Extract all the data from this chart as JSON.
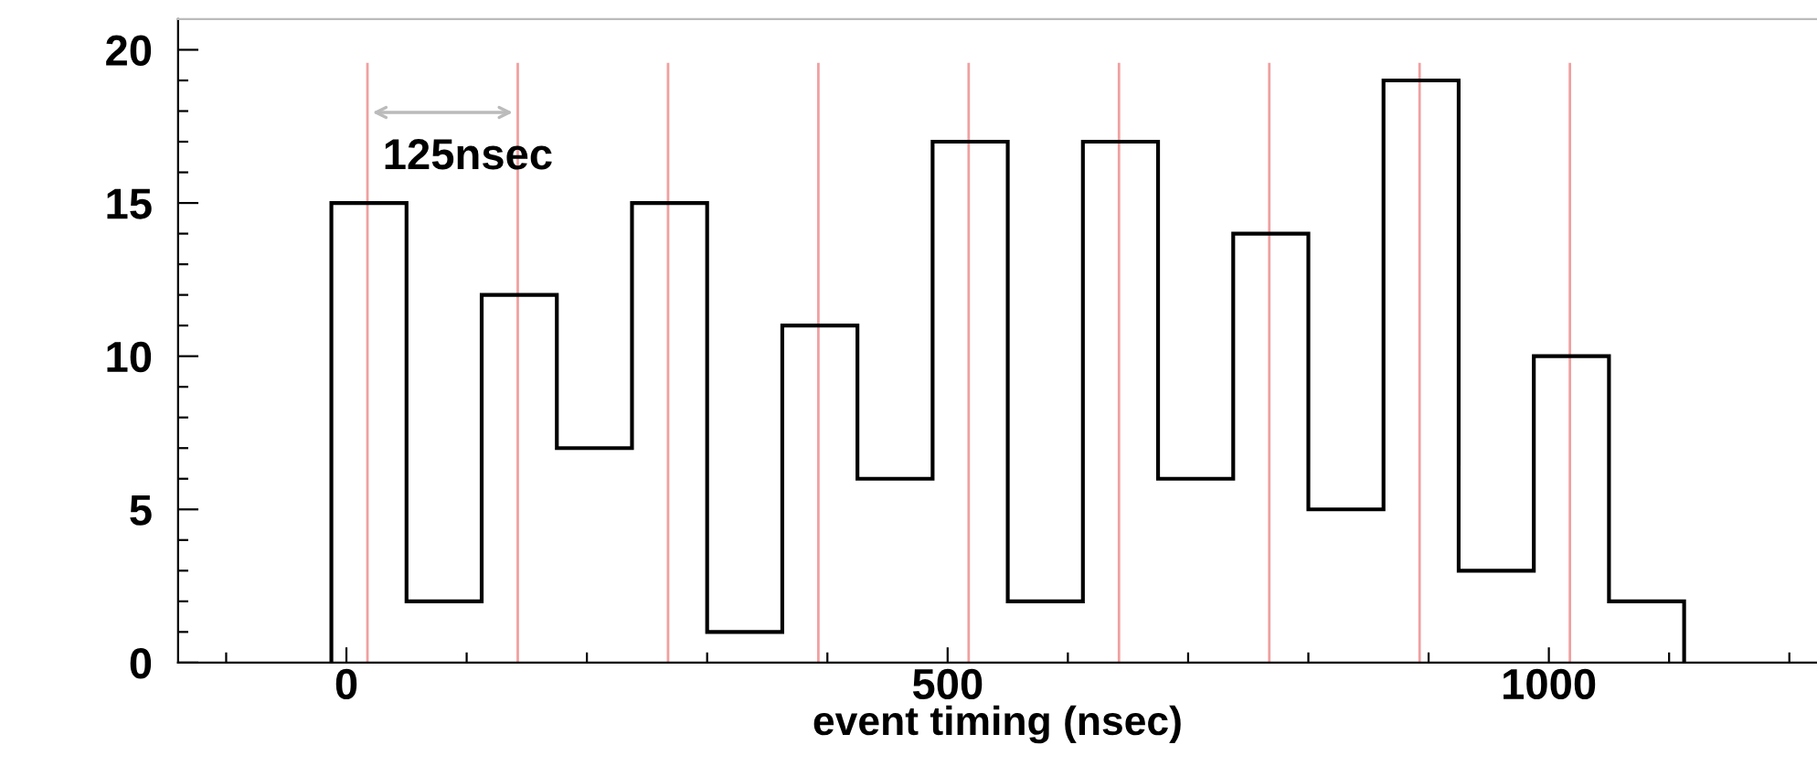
{
  "chart_data": {
    "type": "histogram",
    "xlabel": "event timing (nsec)",
    "bins": [
      -12.5,
      50,
      112.5,
      175,
      237.5,
      300,
      362.5,
      425,
      487.5,
      550,
      612.5,
      675,
      737.5,
      800,
      862.5,
      925,
      987.5,
      1050,
      1112.5
    ],
    "values": [
      15,
      2,
      12,
      7,
      15,
      1,
      11,
      6,
      17,
      2,
      17,
      6,
      14,
      5,
      19,
      3,
      10,
      2
    ],
    "color": "#000000",
    "xlim": [
      -140,
      1223
    ],
    "ylim": [
      0,
      21
    ],
    "xticks": [
      {
        "value": -100,
        "label": null
      },
      0,
      {
        "value": 100,
        "label": null
      },
      {
        "value": 200,
        "label": null
      },
      {
        "value": 300,
        "label": null
      },
      {
        "value": 400,
        "label": null
      },
      500,
      {
        "value": 600,
        "label": null
      },
      {
        "value": 700,
        "label": null
      },
      {
        "value": 800,
        "label": null
      },
      {
        "value": 900,
        "label": null
      },
      1000,
      {
        "value": 1100,
        "label": null
      },
      {
        "value": 1200,
        "label": null
      }
    ],
    "yticks": [
      0,
      {
        "value": 1,
        "label": null
      },
      {
        "value": 2,
        "label": null
      },
      {
        "value": 3,
        "label": null
      },
      {
        "value": 4,
        "label": null
      },
      5,
      {
        "value": 6,
        "label": null
      },
      {
        "value": 7,
        "label": null
      },
      {
        "value": 8,
        "label": null
      },
      {
        "value": 9,
        "label": null
      },
      10,
      {
        "value": 11,
        "label": null
      },
      {
        "value": 12,
        "label": null
      },
      {
        "value": 13,
        "label": null
      },
      {
        "value": 14,
        "label": null
      },
      15,
      {
        "value": 16,
        "label": null
      },
      {
        "value": 17,
        "label": null
      },
      {
        "value": 18,
        "label": null
      },
      {
        "value": 19,
        "label": null
      },
      20
    ],
    "ref_lines": [
      {
        "axis": "x",
        "value": 17.5,
        "color": "#f0a0a0"
      },
      {
        "axis": "x",
        "value": 142.5,
        "color": "#f0a0a0"
      },
      {
        "axis": "x",
        "value": 267.5,
        "color": "#f0a0a0"
      },
      {
        "axis": "x",
        "value": 392.5,
        "color": "#f0a0a0"
      },
      {
        "axis": "x",
        "value": 517.5,
        "color": "#f0a0a0"
      },
      {
        "axis": "x",
        "value": 642.5,
        "color": "#f0a0a0"
      },
      {
        "axis": "x",
        "value": 767.5,
        "color": "#f0a0a0"
      },
      {
        "axis": "x",
        "value": 892.5,
        "color": "#f0a0a0"
      },
      {
        "axis": "x",
        "value": 1017.5,
        "color": "#f0a0a0"
      }
    ],
    "annotations": [
      "125nsec"
    ],
    "grid": false,
    "legend": false
  }
}
